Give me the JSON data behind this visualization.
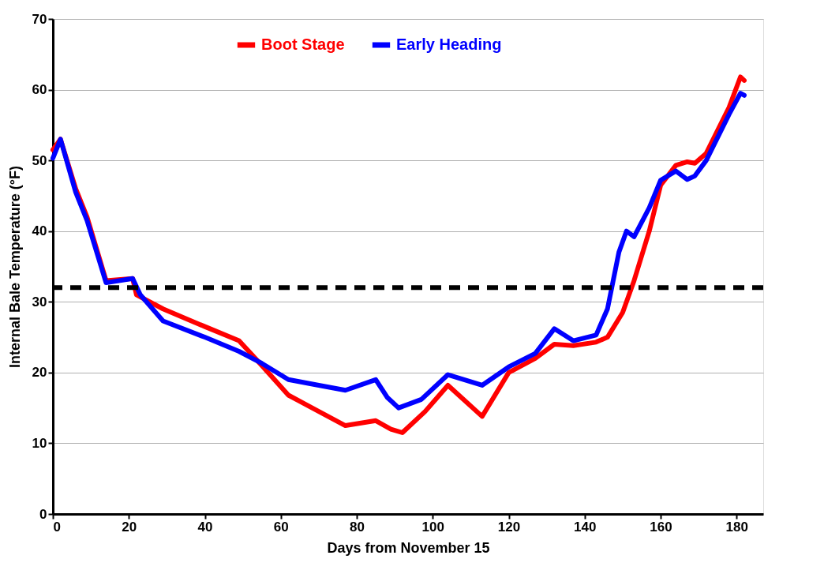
{
  "chart_data": {
    "type": "line",
    "xlabel": "Days from November 15",
    "ylabel": "Internal Bale Temperature (°F)",
    "xlim": [
      0,
      187
    ],
    "ylim": [
      0,
      70
    ],
    "xticks": [
      0,
      20,
      40,
      60,
      80,
      100,
      120,
      140,
      160,
      180
    ],
    "yticks": [
      0,
      10,
      20,
      30,
      40,
      50,
      60,
      70
    ],
    "grid": "y",
    "legend": "top",
    "marker": "none",
    "line_style": "solid",
    "series": [
      {
        "name": "Boot Stage",
        "color": "#ff0000",
        "x": [
          0,
          2,
          6,
          9,
          14,
          21,
          22,
          29,
          40,
          49,
          55,
          62,
          70,
          77,
          85,
          89,
          92,
          98,
          104,
          113,
          120,
          127,
          132,
          137,
          143,
          146,
          150,
          153,
          157,
          160,
          164,
          167,
          169,
          172,
          178,
          181,
          182
        ],
        "values": [
          51.5,
          53,
          46,
          42,
          33,
          33.3,
          31,
          29,
          26.5,
          24.5,
          21,
          16.8,
          14.5,
          12.5,
          13.2,
          12,
          11.5,
          14.5,
          18.2,
          13.8,
          20,
          22,
          24,
          23.8,
          24.3,
          25,
          28.5,
          33,
          40,
          46.5,
          49.3,
          49.8,
          49.6,
          51,
          57.5,
          61.8,
          61.3
        ]
      },
      {
        "name": "Early Heading",
        "color": "#0000ff",
        "x": [
          0,
          2,
          6,
          9,
          14,
          21,
          23,
          29,
          40,
          49,
          55,
          62,
          70,
          77,
          85,
          88,
          91,
          97,
          104,
          113,
          120,
          127,
          132,
          137,
          143,
          146,
          149,
          151,
          153,
          157,
          160,
          164,
          167,
          169,
          172,
          178,
          181,
          182
        ],
        "values": [
          50.3,
          53,
          45.5,
          41.5,
          32.7,
          33.3,
          31,
          27.3,
          25,
          23,
          21.3,
          19,
          18.2,
          17.5,
          19,
          16.5,
          15,
          16.2,
          19.7,
          18.2,
          20.8,
          22.7,
          26.2,
          24.5,
          25.3,
          29,
          37,
          40,
          39.2,
          43.3,
          47.2,
          48.5,
          47.3,
          47.8,
          50,
          56.5,
          59.5,
          59.2
        ]
      }
    ],
    "ref_lines": [
      {
        "axis": "y",
        "value": 32,
        "color": "#000000",
        "line_style": "dashed"
      }
    ]
  }
}
